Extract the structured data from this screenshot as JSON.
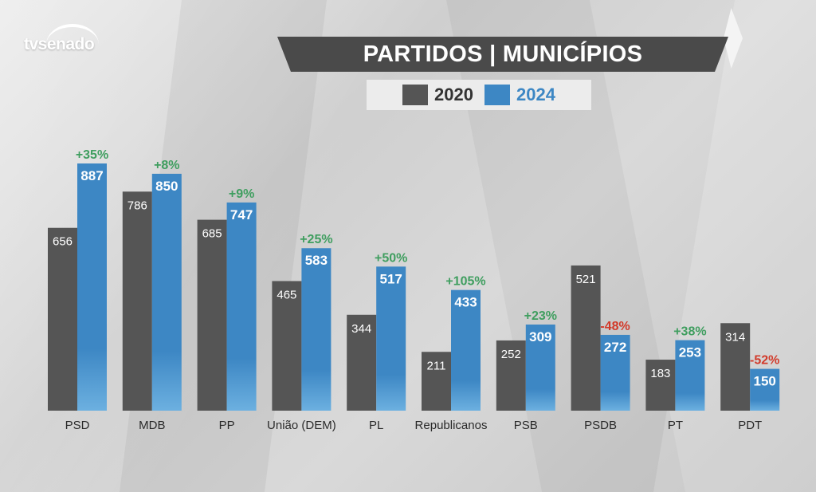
{
  "brand": {
    "logo_text": "tvsenado"
  },
  "colors": {
    "series_2020": "#555555",
    "series_2024": "#3d87c4",
    "change_positive": "#3f9e5f",
    "change_negative": "#d23a2a",
    "banner": "#4a4a4a"
  },
  "chart_data": {
    "type": "bar",
    "title": "PARTIDOS | MUNICÍPIOS",
    "categories": [
      "PSD",
      "MDB",
      "PP",
      "União (DEM)",
      "PL",
      "Republicanos",
      "PSB",
      "PSDB",
      "PT",
      "PDT"
    ],
    "series": [
      {
        "name": "2020",
        "values": [
          656,
          786,
          685,
          465,
          344,
          211,
          252,
          521,
          183,
          314
        ]
      },
      {
        "name": "2024",
        "values": [
          887,
          850,
          747,
          583,
          517,
          433,
          309,
          272,
          253,
          150
        ]
      }
    ],
    "changes": [
      "+35%",
      "+8%",
      "+9%",
      "+25%",
      "+50%",
      "+105%",
      "+23%",
      "-48%",
      "+38%",
      "-52%"
    ],
    "ylim": [
      0,
      887
    ],
    "grid": false,
    "legend_position": "top"
  }
}
